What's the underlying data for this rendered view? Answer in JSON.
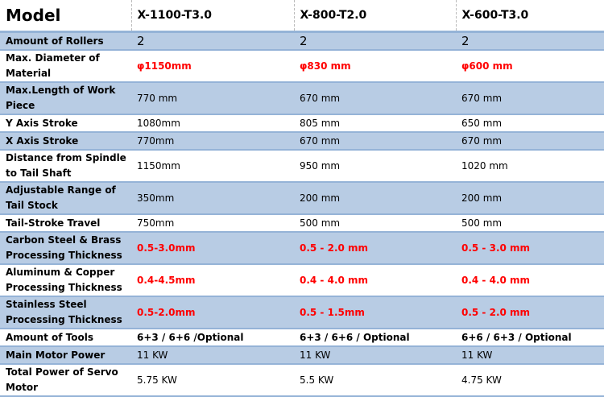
{
  "header": {
    "label": "Model",
    "models": [
      "X-1100-T3.0",
      "X-800-T2.0",
      "X-600-T3.0"
    ]
  },
  "rows": [
    {
      "label": "Amount of Rollers",
      "values": [
        "2",
        "2",
        "2"
      ],
      "highlight": false
    },
    {
      "label": "Max. Diameter of Material",
      "values": [
        "φ1150mm",
        "φ830 mm",
        "φ600 mm"
      ],
      "highlight": true
    },
    {
      "label": "Max.Length of Work Piece",
      "values": [
        "770 mm",
        "670 mm",
        "670 mm"
      ],
      "highlight": false
    },
    {
      "label": "Y Axis Stroke",
      "values": [
        "1080mm",
        "805 mm",
        "650 mm"
      ],
      "highlight": false
    },
    {
      "label": "X Axis Stroke",
      "values": [
        "770mm",
        "670 mm",
        "670 mm"
      ],
      "highlight": false
    },
    {
      "label": "Distance from Spindle to Tail Shaft",
      "values": [
        "1150mm",
        "950 mm",
        "1020 mm"
      ],
      "highlight": false
    },
    {
      "label": "Adjustable Range of Tail Stock",
      "values": [
        "350mm",
        "200 mm",
        "200 mm"
      ],
      "highlight": false
    },
    {
      "label": "Tail-Stroke Travel",
      "values": [
        "750mm",
        "500 mm",
        "500 mm"
      ],
      "highlight": false
    },
    {
      "label": "Carbon Steel & Brass Processing Thickness",
      "values": [
        "0.5-3.0mm",
        "0.5 - 2.0 mm",
        "0.5 - 3.0 mm"
      ],
      "highlight": true
    },
    {
      "label": "Aluminum & Copper Processing Thickness",
      "values": [
        "0.4-4.5mm",
        "0.4 - 4.0 mm",
        "0.4 - 4.0 mm"
      ],
      "highlight": true
    },
    {
      "label": "Stainless Steel Processing Thickness",
      "values": [
        "0.5-2.0mm",
        "0.5 - 1.5mm",
        "0.5 - 2.0 mm"
      ],
      "highlight": true
    },
    {
      "label": "Amount of Tools",
      "values": [
        "6+3 / 6+6 /Optional",
        "6+3 / 6+6 / Optional",
        "6+6 / 6+3 / Optional"
      ],
      "highlight": false
    },
    {
      "label": "Main Motor Power",
      "values": [
        "11 KW",
        "11 KW",
        "11 KW"
      ],
      "highlight": false
    },
    {
      "label": "Total Power of Servo Motor",
      "values": [
        "5.75 KW",
        "5.5 KW",
        "4.75 KW"
      ],
      "highlight": false
    }
  ],
  "colors": {
    "row_blue": "#b8cce4",
    "highlight_red": "#ff0000"
  }
}
